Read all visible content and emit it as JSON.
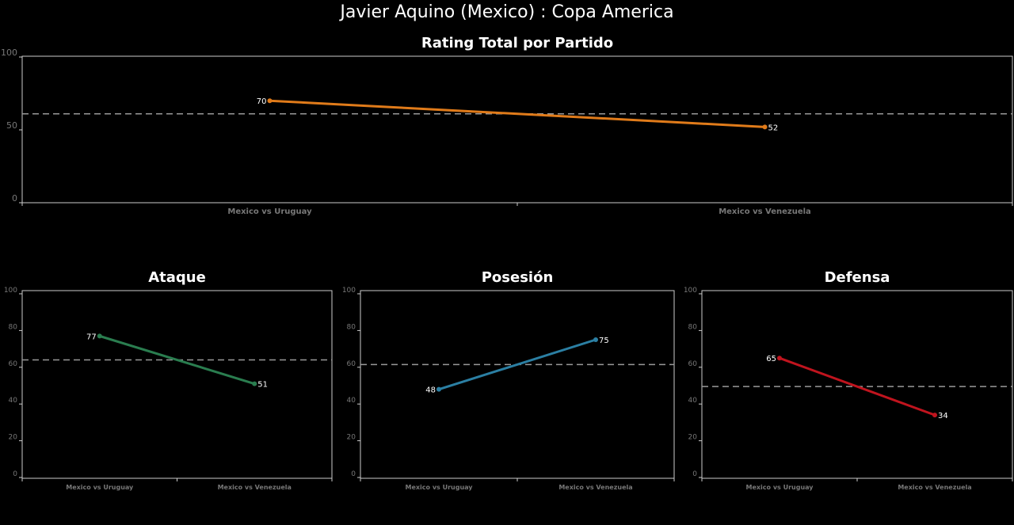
{
  "title": "Javier Aquino (Mexico) :  Copa  America",
  "chart_data": [
    {
      "type": "line",
      "title": "Rating Total por Partido",
      "categories": [
        "Mexico vs Uruguay",
        "Mexico vs Venezuela"
      ],
      "values": [
        70,
        52
      ],
      "average": 61,
      "ylim": [
        0,
        100
      ],
      "yticks": [
        0,
        50,
        100
      ],
      "color": "#e07b1a",
      "grid": false
    },
    {
      "type": "line",
      "title": "Ataque",
      "categories": [
        "Mexico vs Uruguay",
        "Mexico vs Venezuela"
      ],
      "values": [
        77,
        51
      ],
      "average": 64,
      "ylim": [
        0,
        100
      ],
      "yticks": [
        0,
        20,
        40,
        60,
        80,
        100
      ],
      "color": "#2a7d4f",
      "grid": false
    },
    {
      "type": "line",
      "title": "Posesión",
      "categories": [
        "Mexico vs Uruguay",
        "Mexico vs Venezuela"
      ],
      "values": [
        48,
        75
      ],
      "average": 61.5,
      "ylim": [
        0,
        100
      ],
      "yticks": [
        0,
        20,
        40,
        60,
        80,
        100
      ],
      "color": "#2b7fa3",
      "grid": false
    },
    {
      "type": "line",
      "title": "Defensa",
      "categories": [
        "Mexico vs Uruguay",
        "Mexico vs Venezuela"
      ],
      "values": [
        65,
        34
      ],
      "average": 49.5,
      "ylim": [
        0,
        100
      ],
      "yticks": [
        0,
        20,
        40,
        60,
        80,
        100
      ],
      "color": "#c0141e",
      "grid": false
    }
  ]
}
